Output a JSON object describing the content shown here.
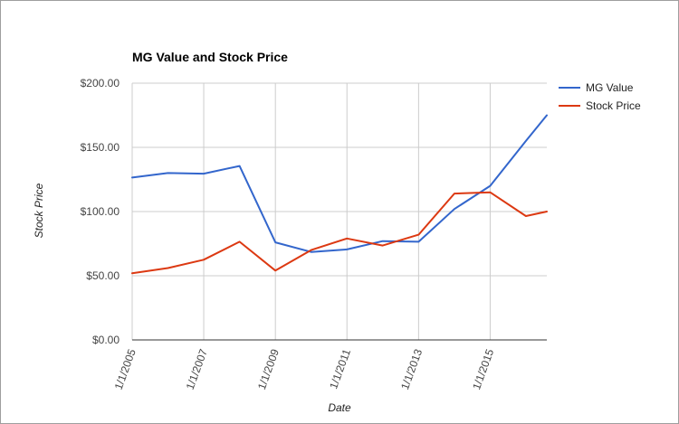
{
  "chart_data": {
    "type": "line",
    "title": "MG Value and Stock Price",
    "xlabel": "Date",
    "ylabel": "Stock Price",
    "ylim": [
      0,
      200
    ],
    "yticks": [
      0,
      50,
      100,
      150,
      200
    ],
    "ytick_labels": [
      "$0.00",
      "$50.00",
      "$100.00",
      "$150.00",
      "$200.00"
    ],
    "xlim": [
      "2005-01-01",
      "2016-08-01"
    ],
    "xticks": [
      "2005-01-01",
      "2007-01-01",
      "2009-01-01",
      "2011-01-01",
      "2013-01-01",
      "2015-01-01"
    ],
    "xtick_labels": [
      "1/1/2005",
      "1/1/2007",
      "1/1/2009",
      "1/1/2011",
      "1/1/2013",
      "1/1/2015"
    ],
    "grid": true,
    "legend_position": "top-right",
    "series": [
      {
        "name": "MG Value",
        "color": "#3366cc",
        "x": [
          "2005-01-01",
          "2006-01-01",
          "2007-01-01",
          "2008-01-01",
          "2009-01-01",
          "2010-01-01",
          "2011-01-01",
          "2012-01-01",
          "2013-01-01",
          "2014-01-01",
          "2015-01-01",
          "2016-01-01",
          "2016-08-01"
        ],
        "values": [
          126.5,
          130,
          129.5,
          135.5,
          76,
          68.5,
          70.5,
          77,
          76.5,
          102,
          120,
          155,
          175
        ]
      },
      {
        "name": "Stock Price",
        "color": "#dc3912",
        "x": [
          "2005-01-01",
          "2006-01-01",
          "2007-01-01",
          "2008-01-01",
          "2009-01-01",
          "2010-01-01",
          "2011-01-01",
          "2012-01-01",
          "2013-01-01",
          "2014-01-01",
          "2015-01-01",
          "2016-01-01",
          "2016-08-01"
        ],
        "values": [
          52,
          56,
          62.5,
          76.5,
          54,
          70,
          79,
          73.5,
          82,
          114,
          115,
          96.5,
          100
        ]
      }
    ]
  }
}
